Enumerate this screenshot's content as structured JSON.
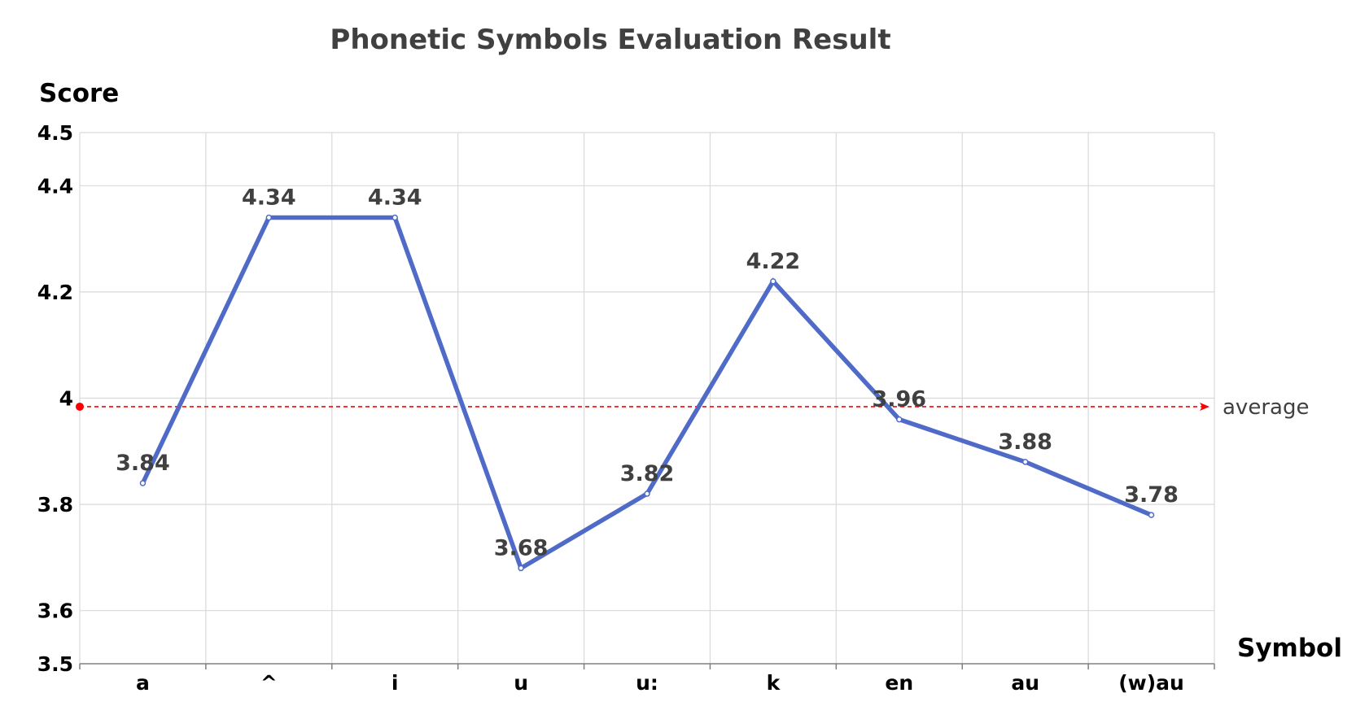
{
  "chart_data": {
    "type": "line",
    "title": "Phonetic Symbols Evaluation Result",
    "xlabel": "Symbol",
    "ylabel": "Score",
    "categories": [
      "a",
      "^",
      "i",
      "u",
      "u:",
      "k",
      "en",
      "au",
      "(w)au"
    ],
    "series": [
      {
        "values": [
          3.84,
          4.34,
          4.34,
          3.68,
          3.82,
          4.22,
          3.96,
          3.88,
          3.78
        ]
      }
    ],
    "data_labels": [
      "3.84",
      "4.34",
      "4.34",
      "3.68",
      "3.82",
      "4.22",
      "3.96",
      "3.88",
      "3.78"
    ],
    "ylim": [
      3.5,
      4.5
    ],
    "yticks": [
      3.5,
      3.6,
      3.8,
      4,
      4.2,
      4.4,
      4.5
    ],
    "ytick_labels": [
      "3.5",
      "3.6",
      "3.8",
      "4",
      "4.2",
      "4.4",
      "4.5"
    ],
    "grid": true,
    "reference_line": {
      "label": "average",
      "value": 3.984,
      "color": "#ff0000",
      "style": "dashed"
    },
    "colors": {
      "series": "#4f6bc7",
      "grid": "#d9d9d9",
      "title": "#404040"
    }
  }
}
